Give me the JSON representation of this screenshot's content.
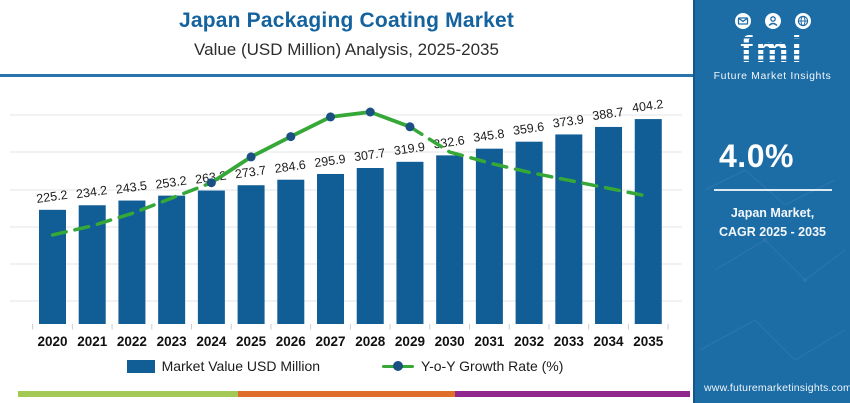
{
  "header": {
    "title": "Japan Packaging Coating Market",
    "subtitle": "Value (USD Million) Analysis, 2025-2035"
  },
  "chart_data": {
    "type": "bar",
    "title": "Japan Packaging Coating Market Value (USD Million) Analysis, 2025-2035",
    "categories": [
      "2020",
      "2021",
      "2022",
      "2023",
      "2024",
      "2025",
      "2026",
      "2027",
      "2028",
      "2029",
      "2030",
      "2031",
      "2032",
      "2033",
      "2034",
      "2035"
    ],
    "series": [
      {
        "name": "Market Value USD Million",
        "type": "bar",
        "color": "#115d95",
        "values": [
          225.2,
          234.2,
          243.5,
          253.2,
          263.2,
          273.7,
          284.6,
          295.9,
          307.7,
          319.9,
          332.6,
          345.8,
          359.6,
          373.9,
          388.7,
          404.2
        ],
        "value_labels_shown": true
      },
      {
        "name": "Y-o-Y Growth Rate (%)",
        "type": "line",
        "color": "#35a838",
        "marker_color": "#1a5082",
        "axis_labels_shown": false,
        "values_estimated": [
          3.0,
          3.15,
          3.35,
          3.6,
          3.85,
          4.27,
          4.6,
          4.92,
          5.0,
          4.76,
          4.35,
          4.17,
          4.02,
          3.89,
          3.76,
          3.63
        ],
        "solid_marker_years": [
          "2024",
          "2025",
          "2026",
          "2027",
          "2028",
          "2029"
        ],
        "dashed_segments": [
          "2020-2024",
          "2029-2035"
        ]
      }
    ],
    "legend": {
      "bar_label": "Market Value USD Million",
      "line_label": "Y-o-Y Growth Rate (%)"
    },
    "legend_position": "bottom",
    "grid": "horizontal-light",
    "ylim_bars": [
      0,
      485
    ]
  },
  "side_panel": {
    "bg_color": "#1c6ca6",
    "logo_text": "fmi",
    "logo_tagline": "Future Market Insights",
    "cagr_value": "4.0%",
    "cagr_caption_line1": "Japan Market,",
    "cagr_caption_line2": "CAGR 2025 - 2035",
    "website": "www.futuremarketinsights.com"
  },
  "footer_bar": {
    "colors": [
      "#a3c853",
      "#df6e2a",
      "#90278e"
    ]
  },
  "accent": {
    "title_color": "#14639e",
    "header_rule_color": "#2b73ad"
  }
}
